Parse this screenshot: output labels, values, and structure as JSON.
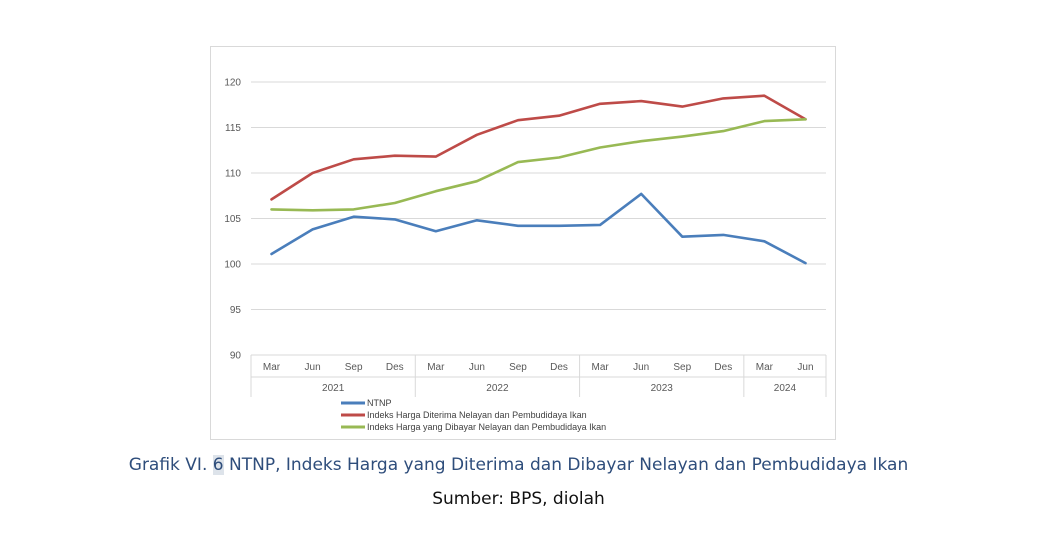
{
  "caption": {
    "prefix": "Grafik VI. ",
    "number": "6",
    "rest": " NTNP, Indeks Harga yang Diterima dan Dibayar Nelayan dan Pembudidaya Ikan"
  },
  "source": "Sumber: BPS, diolah",
  "chart_data": {
    "type": "line",
    "categories": [
      "Mar",
      "Jun",
      "Sep",
      "Des",
      "Mar",
      "Jun",
      "Sep",
      "Des",
      "Mar",
      "Jun",
      "Sep",
      "Des",
      "Mar",
      "Jun"
    ],
    "year_groups": [
      {
        "label": "2021",
        "span": 4
      },
      {
        "label": "2022",
        "span": 4
      },
      {
        "label": "2023",
        "span": 4
      },
      {
        "label": "2024",
        "span": 2
      }
    ],
    "ylim": [
      90,
      120
    ],
    "yticks": [
      90,
      95,
      100,
      105,
      110,
      115,
      120
    ],
    "grid": true,
    "legend_position": "bottom",
    "series": [
      {
        "name": "NTNP",
        "color": "#4a7ebb",
        "values": [
          101.1,
          103.8,
          105.2,
          104.9,
          103.6,
          104.8,
          104.2,
          104.2,
          104.3,
          107.7,
          103.0,
          103.2,
          102.5,
          100.1
        ]
      },
      {
        "name": "Indeks Harga Diterima Nelayan dan Pembudidaya Ikan",
        "color": "#be4b48",
        "values": [
          107.1,
          110.0,
          111.5,
          111.9,
          111.8,
          114.2,
          115.8,
          116.3,
          117.6,
          117.9,
          117.3,
          118.2,
          118.5,
          115.9
        ]
      },
      {
        "name": "Indeks Harga yang Dibayar Nelayan dan Pembudidaya Ikan",
        "color": "#98b954",
        "values": [
          106.0,
          105.9,
          106.0,
          106.7,
          108.0,
          109.1,
          111.2,
          111.7,
          112.8,
          113.5,
          114.0,
          114.6,
          115.7,
          115.9
        ]
      }
    ]
  }
}
